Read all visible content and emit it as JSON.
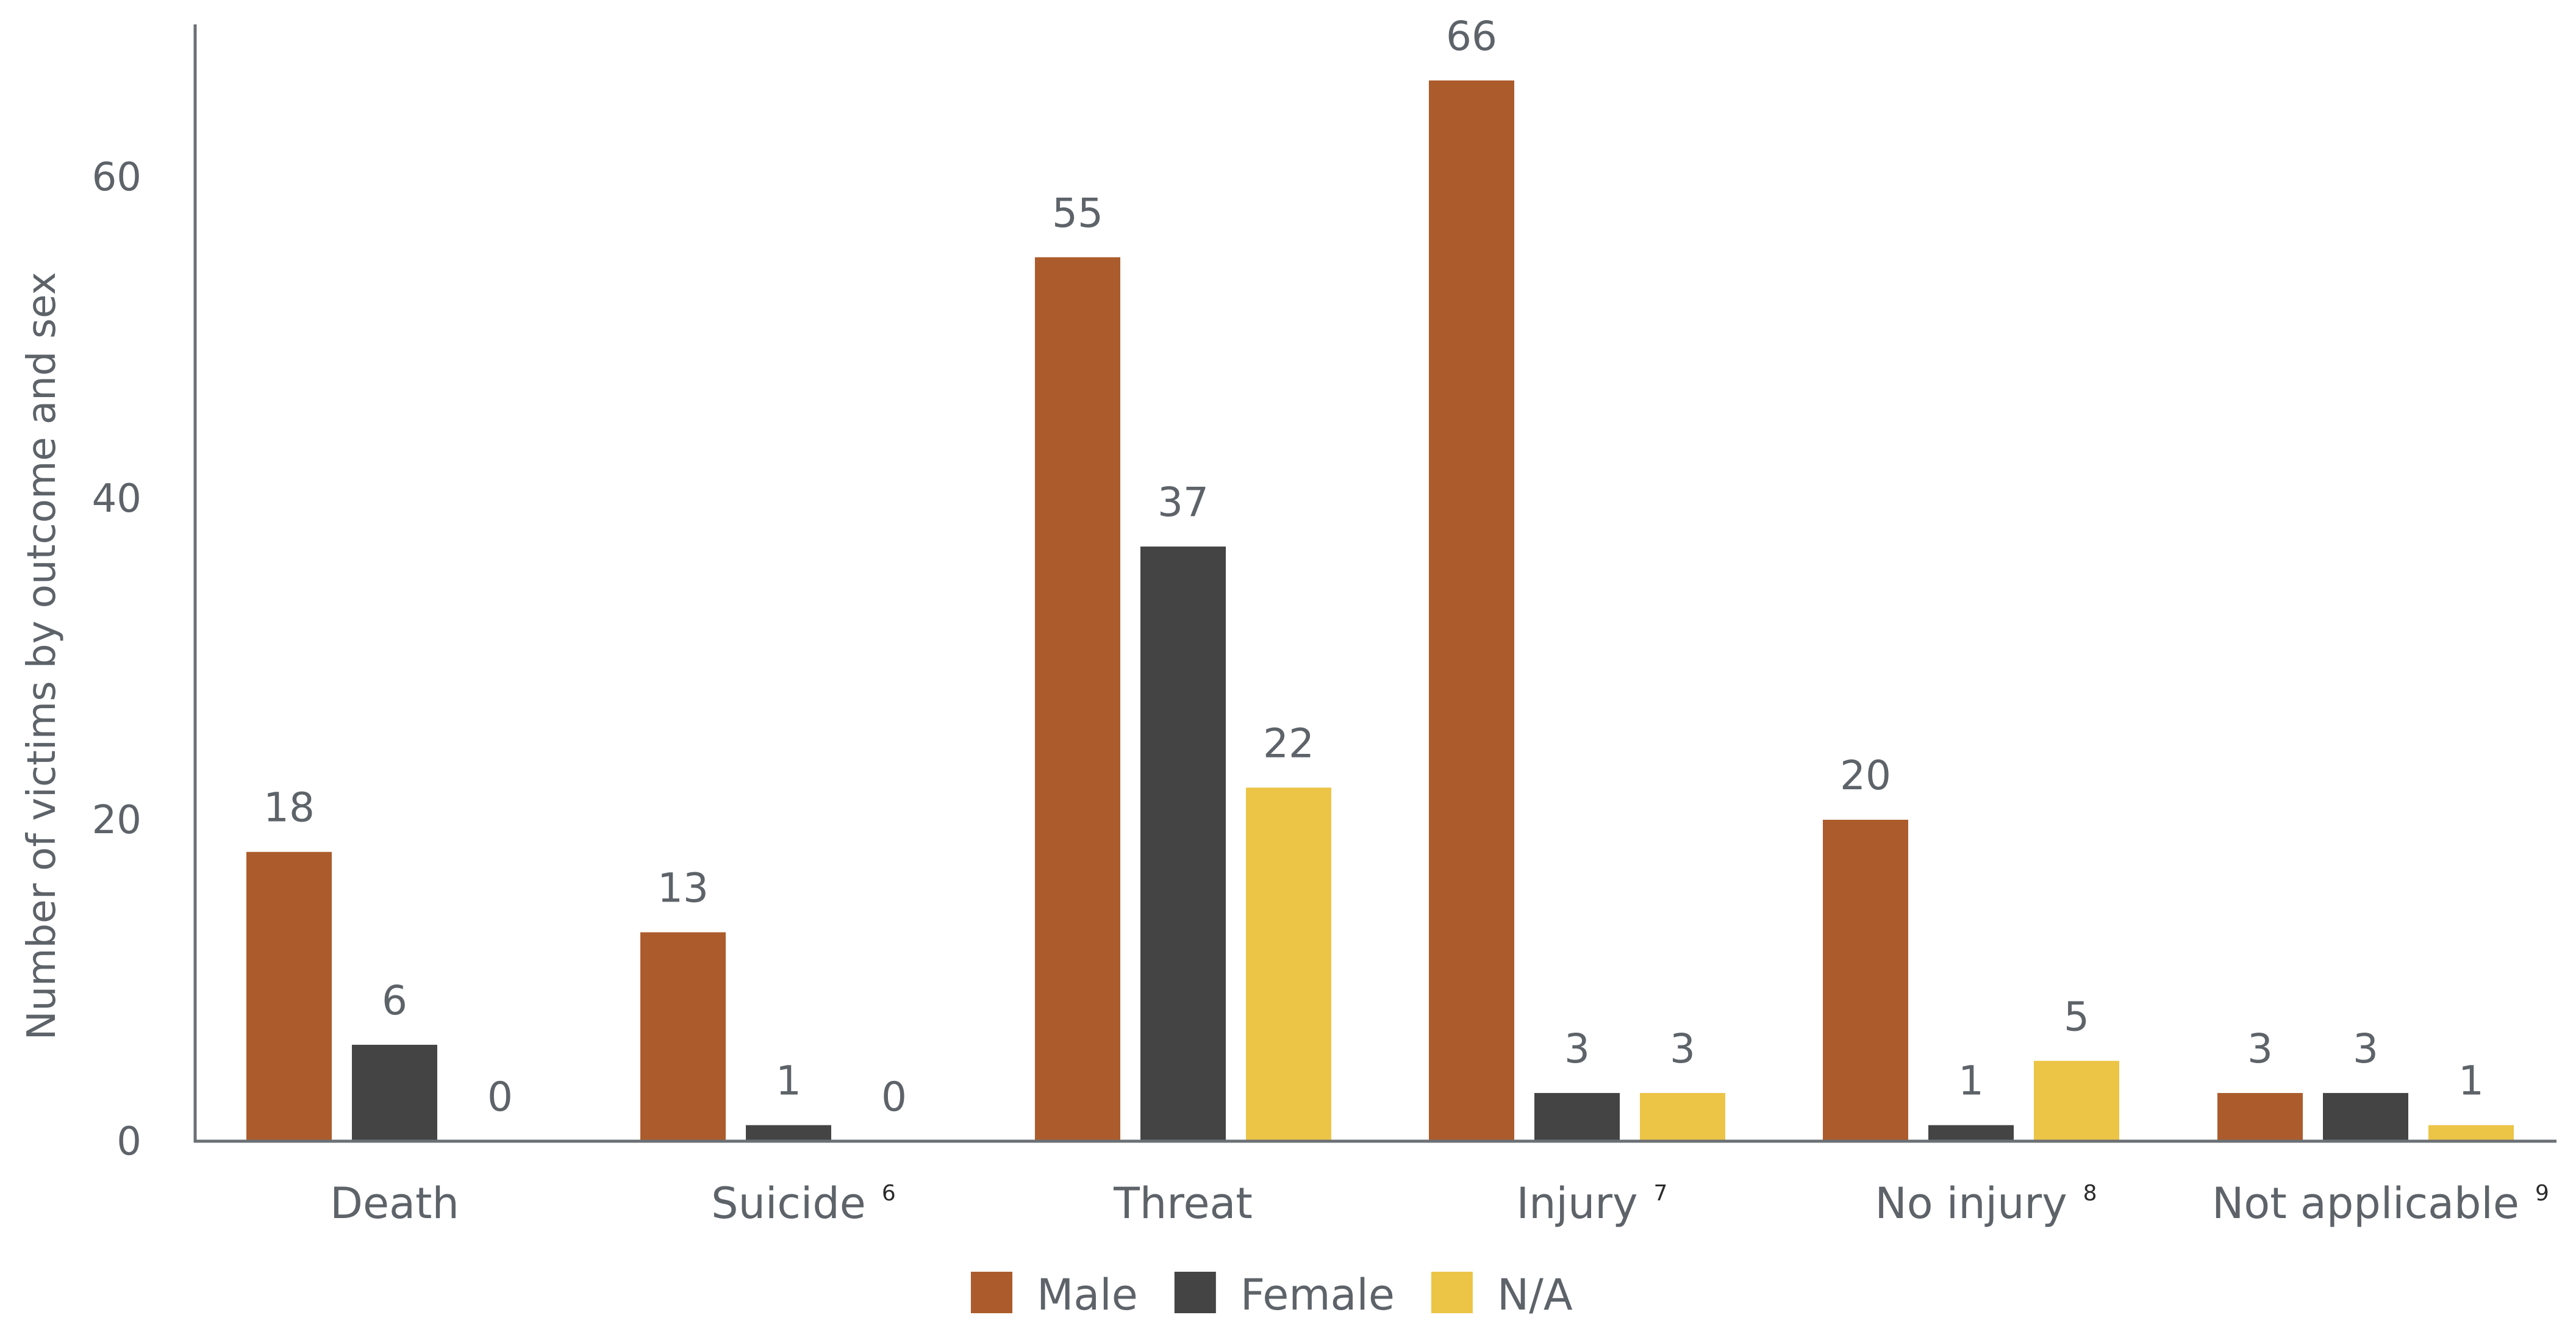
{
  "chart_data": {
    "type": "bar",
    "title": "",
    "xlabel": "",
    "ylabel": "Number of victims by outcome and sex",
    "categories": [
      "Death",
      "Suicide",
      "Threat",
      "Injury",
      "No injury",
      "Not applicable"
    ],
    "footnotes": [
      "",
      "6",
      "",
      "7",
      "8",
      "9"
    ],
    "series": [
      {
        "name": "Male",
        "color": "#ac5c2c",
        "values": [
          18,
          13,
          55,
          66,
          20,
          3
        ]
      },
      {
        "name": "Female",
        "color": "#444444",
        "values": [
          6,
          1,
          37,
          3,
          1,
          3
        ]
      },
      {
        "name": "N/A",
        "color": "#ecc547",
        "values": [
          0,
          0,
          22,
          3,
          5,
          1
        ]
      }
    ],
    "ylim": [
      0,
      70
    ],
    "yticks": [
      0,
      20,
      40,
      60
    ],
    "grid": false,
    "legend_position": "bottom"
  }
}
